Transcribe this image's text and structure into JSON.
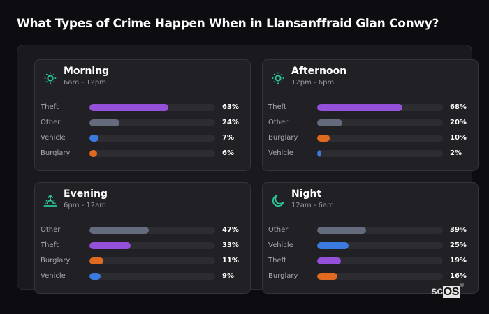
{
  "page": {
    "title": "What Types of Crime Happen When in Llansanffraid Glan Conwy?"
  },
  "colors": {
    "Theft": "#9450d8",
    "Other": "#646b7c",
    "Vehicle": "#3b7ade",
    "Burglary": "#e06b20",
    "icon_accent": "#2bc39a"
  },
  "cards": [
    {
      "id": "morning",
      "title": "Morning",
      "subtitle": "6am - 12pm",
      "icon": "sun-icon",
      "rows": [
        {
          "label": "Theft",
          "value": 63,
          "display": "63%"
        },
        {
          "label": "Other",
          "value": 24,
          "display": "24%"
        },
        {
          "label": "Vehicle",
          "value": 7,
          "display": "7%"
        },
        {
          "label": "Burglary",
          "value": 6,
          "display": "6%"
        }
      ]
    },
    {
      "id": "afternoon",
      "title": "Afternoon",
      "subtitle": "12pm - 6pm",
      "icon": "sun-icon",
      "rows": [
        {
          "label": "Theft",
          "value": 68,
          "display": "68%"
        },
        {
          "label": "Other",
          "value": 20,
          "display": "20%"
        },
        {
          "label": "Burglary",
          "value": 10,
          "display": "10%"
        },
        {
          "label": "Vehicle",
          "value": 2,
          "display": "2%"
        }
      ]
    },
    {
      "id": "evening",
      "title": "Evening",
      "subtitle": "6pm - 12am",
      "icon": "sunset-icon",
      "rows": [
        {
          "label": "Other",
          "value": 47,
          "display": "47%"
        },
        {
          "label": "Theft",
          "value": 33,
          "display": "33%"
        },
        {
          "label": "Burglary",
          "value": 11,
          "display": "11%"
        },
        {
          "label": "Vehicle",
          "value": 9,
          "display": "9%"
        }
      ]
    },
    {
      "id": "night",
      "title": "Night",
      "subtitle": "12am - 6am",
      "icon": "moon-icon",
      "rows": [
        {
          "label": "Other",
          "value": 39,
          "display": "39%"
        },
        {
          "label": "Vehicle",
          "value": 25,
          "display": "25%"
        },
        {
          "label": "Theft",
          "value": 19,
          "display": "19%"
        },
        {
          "label": "Burglary",
          "value": 16,
          "display": "16%"
        }
      ]
    }
  ],
  "logo": {
    "sc": "sc",
    "os": "OS",
    "reg": "®"
  },
  "chart_data": [
    {
      "type": "bar",
      "orientation": "horizontal",
      "title": "Morning",
      "subtitle": "6am - 12pm",
      "categories": [
        "Theft",
        "Other",
        "Vehicle",
        "Burglary"
      ],
      "values": [
        63,
        24,
        7,
        6
      ],
      "unit": "%",
      "xlim": [
        0,
        100
      ]
    },
    {
      "type": "bar",
      "orientation": "horizontal",
      "title": "Afternoon",
      "subtitle": "12pm - 6pm",
      "categories": [
        "Theft",
        "Other",
        "Burglary",
        "Vehicle"
      ],
      "values": [
        68,
        20,
        10,
        2
      ],
      "unit": "%",
      "xlim": [
        0,
        100
      ]
    },
    {
      "type": "bar",
      "orientation": "horizontal",
      "title": "Evening",
      "subtitle": "6pm - 12am",
      "categories": [
        "Other",
        "Theft",
        "Burglary",
        "Vehicle"
      ],
      "values": [
        47,
        33,
        11,
        9
      ],
      "unit": "%",
      "xlim": [
        0,
        100
      ]
    },
    {
      "type": "bar",
      "orientation": "horizontal",
      "title": "Night",
      "subtitle": "12am - 6am",
      "categories": [
        "Other",
        "Vehicle",
        "Theft",
        "Burglary"
      ],
      "values": [
        39,
        25,
        19,
        16
      ],
      "unit": "%",
      "xlim": [
        0,
        100
      ]
    }
  ]
}
